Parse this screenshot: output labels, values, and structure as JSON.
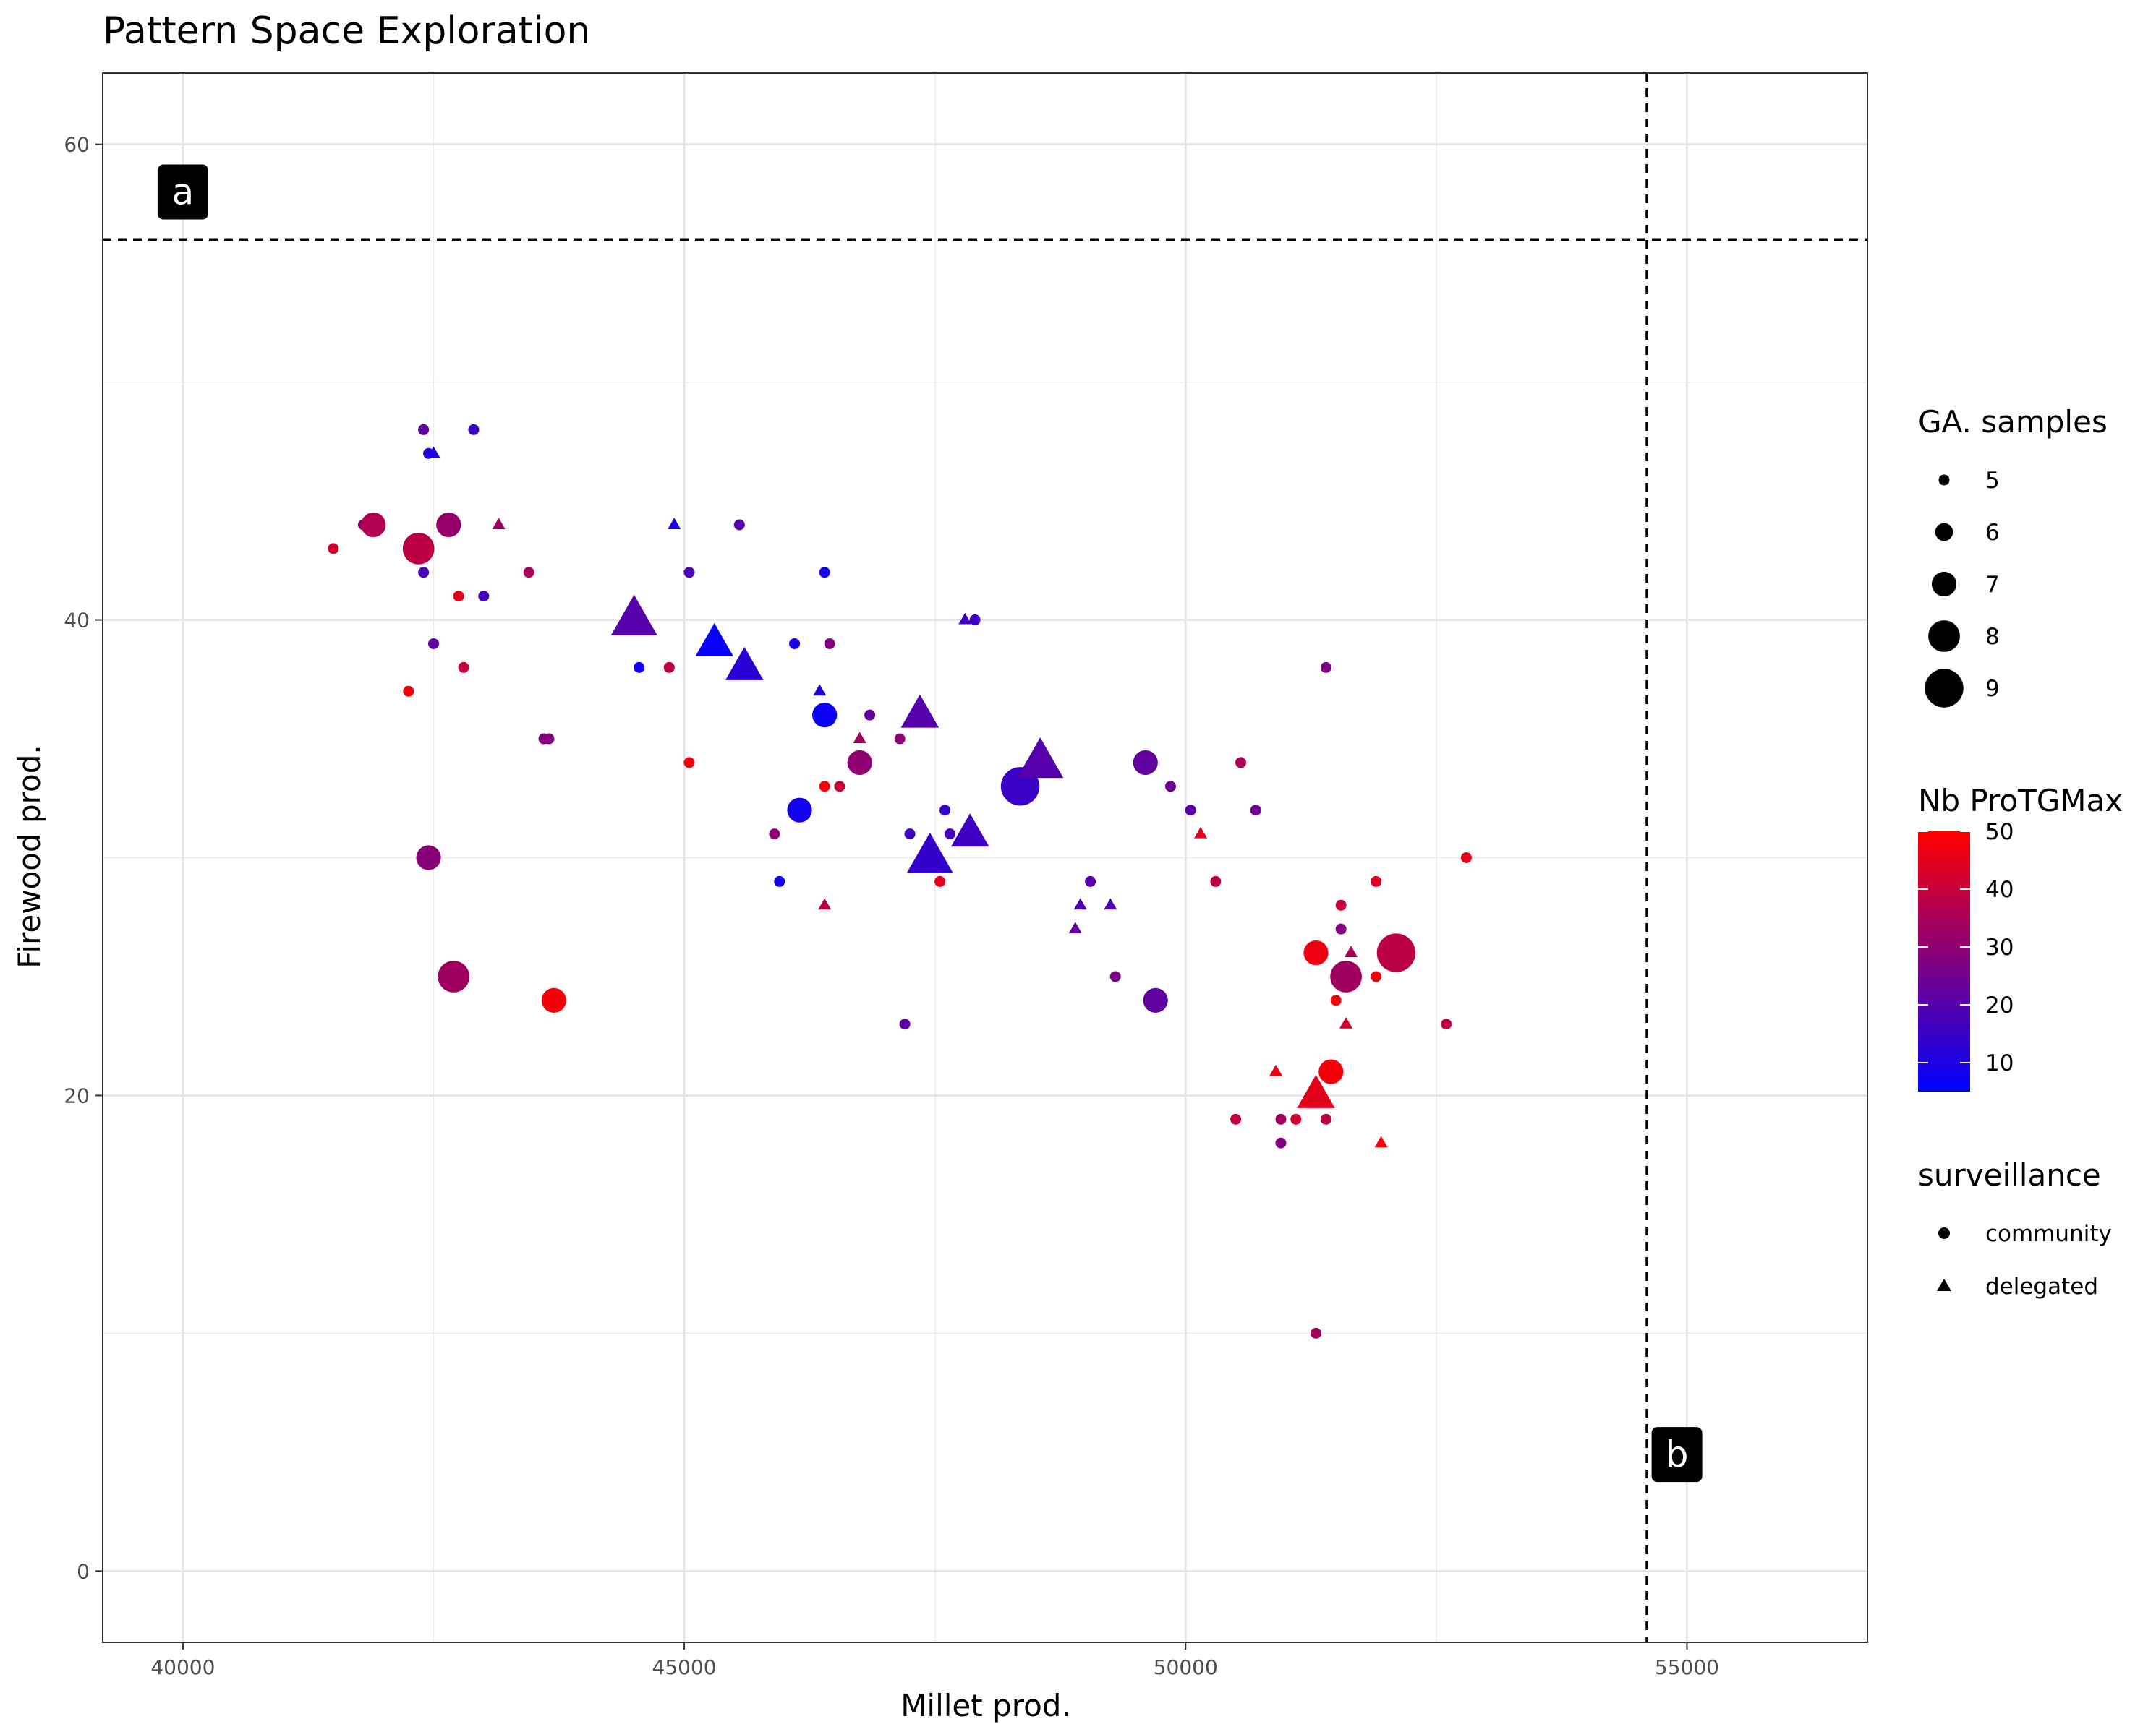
{
  "chart_data": {
    "type": "scatter",
    "title": "Pattern Space Exploration",
    "xlabel": "Millet prod.",
    "ylabel": "Firewood prod.",
    "xlim": [
      39200,
      56800
    ],
    "ylim": [
      -3,
      63
    ],
    "x_ticks": [
      40000,
      45000,
      50000,
      55000
    ],
    "x_tick_labels": [
      "40000",
      "45000",
      "50000",
      "55000"
    ],
    "y_ticks": [
      0,
      20,
      40,
      60
    ],
    "y_tick_labels": [
      "0",
      "20",
      "40",
      "60"
    ],
    "grid": true,
    "legend_position": "right",
    "reference_lines": [
      {
        "orientation": "horizontal",
        "y": 56,
        "style": "dashed",
        "color": "#000000"
      },
      {
        "orientation": "vertical",
        "x": 54600,
        "style": "dashed",
        "color": "#000000"
      }
    ],
    "annotations": [
      {
        "label": "a",
        "x": 40000,
        "y": 58
      },
      {
        "label": "b",
        "x": 54900,
        "y": 4.9
      }
    ],
    "size_legend": {
      "title": "GA. samples",
      "values": [
        5,
        6,
        7,
        8,
        9
      ],
      "labels": [
        "5",
        "6",
        "7",
        "8",
        "9"
      ]
    },
    "color_legend": {
      "title": "Nb ProTGMax",
      "min": 5,
      "max": 50,
      "low_color": "#0000ff",
      "high_color": "#ff0000",
      "ticks": [
        10,
        20,
        30,
        40,
        50
      ],
      "tick_labels": [
        "10",
        "20",
        "30",
        "40",
        "50"
      ]
    },
    "shape_legend": {
      "title": "surveillance",
      "items": [
        {
          "label": "community",
          "shape": "circle"
        },
        {
          "label": "delegated",
          "shape": "triangle"
        }
      ]
    },
    "points": [
      {
        "x": 42400,
        "y": 48,
        "size": 5,
        "color": 22,
        "shape": "circle"
      },
      {
        "x": 42900,
        "y": 48,
        "size": 5,
        "color": 15,
        "shape": "circle"
      },
      {
        "x": 42450,
        "y": 47,
        "size": 5,
        "color": 12,
        "shape": "circle"
      },
      {
        "x": 42500,
        "y": 47,
        "size": 5,
        "color": 10,
        "shape": "triangle"
      },
      {
        "x": 41500,
        "y": 43,
        "size": 5,
        "color": 42,
        "shape": "circle"
      },
      {
        "x": 41800,
        "y": 44,
        "size": 5,
        "color": 30,
        "shape": "circle"
      },
      {
        "x": 41900,
        "y": 44,
        "size": 7,
        "color": 36,
        "shape": "circle"
      },
      {
        "x": 42350,
        "y": 43,
        "size": 8,
        "color": 38,
        "shape": "circle"
      },
      {
        "x": 42650,
        "y": 44,
        "size": 7,
        "color": 31,
        "shape": "circle"
      },
      {
        "x": 43150,
        "y": 44,
        "size": 5,
        "color": 33,
        "shape": "triangle"
      },
      {
        "x": 42400,
        "y": 42,
        "size": 5,
        "color": 18,
        "shape": "circle"
      },
      {
        "x": 43450,
        "y": 42,
        "size": 5,
        "color": 35,
        "shape": "circle"
      },
      {
        "x": 42750,
        "y": 41,
        "size": 5,
        "color": 45,
        "shape": "circle"
      },
      {
        "x": 43000,
        "y": 41,
        "size": 5,
        "color": 17,
        "shape": "circle"
      },
      {
        "x": 42500,
        "y": 39,
        "size": 5,
        "color": 22,
        "shape": "circle"
      },
      {
        "x": 42800,
        "y": 38,
        "size": 5,
        "color": 40,
        "shape": "circle"
      },
      {
        "x": 42250,
        "y": 37,
        "size": 5,
        "color": 48,
        "shape": "circle"
      },
      {
        "x": 43600,
        "y": 35,
        "size": 5,
        "color": 28,
        "shape": "circle"
      },
      {
        "x": 43650,
        "y": 35,
        "size": 5,
        "color": 28,
        "shape": "circle"
      },
      {
        "x": 42450,
        "y": 30,
        "size": 7,
        "color": 29,
        "shape": "circle"
      },
      {
        "x": 42700,
        "y": 25,
        "size": 8,
        "color": 33,
        "shape": "circle"
      },
      {
        "x": 43700,
        "y": 24,
        "size": 7,
        "color": 48,
        "shape": "circle"
      },
      {
        "x": 44500,
        "y": 40,
        "size": 9,
        "color": 20,
        "shape": "triangle"
      },
      {
        "x": 44900,
        "y": 44,
        "size": 5,
        "color": 10,
        "shape": "triangle"
      },
      {
        "x": 45050,
        "y": 42,
        "size": 5,
        "color": 18,
        "shape": "circle"
      },
      {
        "x": 44550,
        "y": 38,
        "size": 5,
        "color": 8,
        "shape": "circle"
      },
      {
        "x": 44850,
        "y": 38,
        "size": 5,
        "color": 38,
        "shape": "circle"
      },
      {
        "x": 45300,
        "y": 39,
        "size": 8,
        "color": 6,
        "shape": "triangle"
      },
      {
        "x": 45600,
        "y": 38,
        "size": 8,
        "color": 12,
        "shape": "triangle"
      },
      {
        "x": 45550,
        "y": 44,
        "size": 5,
        "color": 20,
        "shape": "circle"
      },
      {
        "x": 45050,
        "y": 34,
        "size": 5,
        "color": 48,
        "shape": "circle"
      },
      {
        "x": 46400,
        "y": 42,
        "size": 5,
        "color": 8,
        "shape": "circle"
      },
      {
        "x": 46100,
        "y": 39,
        "size": 5,
        "color": 9,
        "shape": "circle"
      },
      {
        "x": 46450,
        "y": 39,
        "size": 5,
        "color": 28,
        "shape": "circle"
      },
      {
        "x": 46350,
        "y": 37,
        "size": 5,
        "color": 12,
        "shape": "triangle"
      },
      {
        "x": 46400,
        "y": 36,
        "size": 7,
        "color": 7,
        "shape": "circle"
      },
      {
        "x": 46850,
        "y": 36,
        "size": 5,
        "color": 22,
        "shape": "circle"
      },
      {
        "x": 46750,
        "y": 35,
        "size": 5,
        "color": 33,
        "shape": "triangle"
      },
      {
        "x": 47150,
        "y": 35,
        "size": 5,
        "color": 30,
        "shape": "circle"
      },
      {
        "x": 47350,
        "y": 36,
        "size": 8,
        "color": 20,
        "shape": "triangle"
      },
      {
        "x": 46750,
        "y": 34,
        "size": 7,
        "color": 30,
        "shape": "circle"
      },
      {
        "x": 46400,
        "y": 33,
        "size": 5,
        "color": 48,
        "shape": "circle"
      },
      {
        "x": 46550,
        "y": 33,
        "size": 5,
        "color": 40,
        "shape": "circle"
      },
      {
        "x": 46150,
        "y": 32,
        "size": 7,
        "color": 8,
        "shape": "circle"
      },
      {
        "x": 45900,
        "y": 31,
        "size": 5,
        "color": 30,
        "shape": "circle"
      },
      {
        "x": 45950,
        "y": 29,
        "size": 5,
        "color": 8,
        "shape": "circle"
      },
      {
        "x": 46400,
        "y": 28,
        "size": 5,
        "color": 38,
        "shape": "triangle"
      },
      {
        "x": 47250,
        "y": 31,
        "size": 5,
        "color": 16,
        "shape": "circle"
      },
      {
        "x": 47650,
        "y": 31,
        "size": 5,
        "color": 17,
        "shape": "circle"
      },
      {
        "x": 47600,
        "y": 32,
        "size": 5,
        "color": 14,
        "shape": "circle"
      },
      {
        "x": 47450,
        "y": 30,
        "size": 9,
        "color": 14,
        "shape": "triangle"
      },
      {
        "x": 47850,
        "y": 31,
        "size": 8,
        "color": 16,
        "shape": "triangle"
      },
      {
        "x": 47550,
        "y": 29,
        "size": 5,
        "color": 45,
        "shape": "circle"
      },
      {
        "x": 47200,
        "y": 23,
        "size": 5,
        "color": 22,
        "shape": "circle"
      },
      {
        "x": 47800,
        "y": 40,
        "size": 5,
        "color": 16,
        "shape": "triangle"
      },
      {
        "x": 47900,
        "y": 40,
        "size": 5,
        "color": 16,
        "shape": "circle"
      },
      {
        "x": 48350,
        "y": 33,
        "size": 9,
        "color": 15,
        "shape": "circle"
      },
      {
        "x": 48550,
        "y": 34,
        "size": 9,
        "color": 20,
        "shape": "triangle"
      },
      {
        "x": 49600,
        "y": 34,
        "size": 7,
        "color": 22,
        "shape": "circle"
      },
      {
        "x": 49850,
        "y": 33,
        "size": 5,
        "color": 24,
        "shape": "circle"
      },
      {
        "x": 50050,
        "y": 32,
        "size": 5,
        "color": 20,
        "shape": "circle"
      },
      {
        "x": 50150,
        "y": 31,
        "size": 5,
        "color": 45,
        "shape": "triangle"
      },
      {
        "x": 50550,
        "y": 34,
        "size": 5,
        "color": 35,
        "shape": "circle"
      },
      {
        "x": 50700,
        "y": 32,
        "size": 5,
        "color": 24,
        "shape": "circle"
      },
      {
        "x": 50300,
        "y": 29,
        "size": 5,
        "color": 38,
        "shape": "circle"
      },
      {
        "x": 49050,
        "y": 29,
        "size": 5,
        "color": 20,
        "shape": "circle"
      },
      {
        "x": 48950,
        "y": 28,
        "size": 5,
        "color": 18,
        "shape": "triangle"
      },
      {
        "x": 49250,
        "y": 28,
        "size": 5,
        "color": 18,
        "shape": "triangle"
      },
      {
        "x": 48900,
        "y": 27,
        "size": 5,
        "color": 22,
        "shape": "triangle"
      },
      {
        "x": 49300,
        "y": 25,
        "size": 5,
        "color": 27,
        "shape": "circle"
      },
      {
        "x": 49700,
        "y": 24,
        "size": 7,
        "color": 22,
        "shape": "circle"
      },
      {
        "x": 51400,
        "y": 38,
        "size": 5,
        "color": 27,
        "shape": "circle"
      },
      {
        "x": 51300,
        "y": 26,
        "size": 7,
        "color": 47,
        "shape": "circle"
      },
      {
        "x": 51650,
        "y": 26,
        "size": 5,
        "color": 35,
        "shape": "triangle"
      },
      {
        "x": 51550,
        "y": 27,
        "size": 5,
        "color": 28,
        "shape": "circle"
      },
      {
        "x": 51550,
        "y": 28,
        "size": 5,
        "color": 40,
        "shape": "circle"
      },
      {
        "x": 51900,
        "y": 29,
        "size": 5,
        "color": 44,
        "shape": "circle"
      },
      {
        "x": 51600,
        "y": 25,
        "size": 8,
        "color": 33,
        "shape": "circle"
      },
      {
        "x": 51900,
        "y": 25,
        "size": 5,
        "color": 48,
        "shape": "circle"
      },
      {
        "x": 51500,
        "y": 24,
        "size": 5,
        "color": 48,
        "shape": "circle"
      },
      {
        "x": 51600,
        "y": 23,
        "size": 5,
        "color": 42,
        "shape": "triangle"
      },
      {
        "x": 52100,
        "y": 26,
        "size": 9,
        "color": 38,
        "shape": "circle"
      },
      {
        "x": 52800,
        "y": 30,
        "size": 5,
        "color": 46,
        "shape": "circle"
      },
      {
        "x": 52600,
        "y": 23,
        "size": 5,
        "color": 38,
        "shape": "circle"
      },
      {
        "x": 51450,
        "y": 21,
        "size": 7,
        "color": 48,
        "shape": "circle"
      },
      {
        "x": 50900,
        "y": 21,
        "size": 5,
        "color": 47,
        "shape": "triangle"
      },
      {
        "x": 51300,
        "y": 20,
        "size": 8,
        "color": 45,
        "shape": "triangle"
      },
      {
        "x": 50500,
        "y": 19,
        "size": 5,
        "color": 40,
        "shape": "circle"
      },
      {
        "x": 50950,
        "y": 19,
        "size": 5,
        "color": 33,
        "shape": "circle"
      },
      {
        "x": 51100,
        "y": 19,
        "size": 5,
        "color": 42,
        "shape": "circle"
      },
      {
        "x": 51400,
        "y": 19,
        "size": 5,
        "color": 38,
        "shape": "circle"
      },
      {
        "x": 50950,
        "y": 18,
        "size": 5,
        "color": 28,
        "shape": "circle"
      },
      {
        "x": 51950,
        "y": 18,
        "size": 5,
        "color": 48,
        "shape": "triangle"
      },
      {
        "x": 51300,
        "y": 10,
        "size": 5,
        "color": 34,
        "shape": "circle"
      }
    ]
  }
}
